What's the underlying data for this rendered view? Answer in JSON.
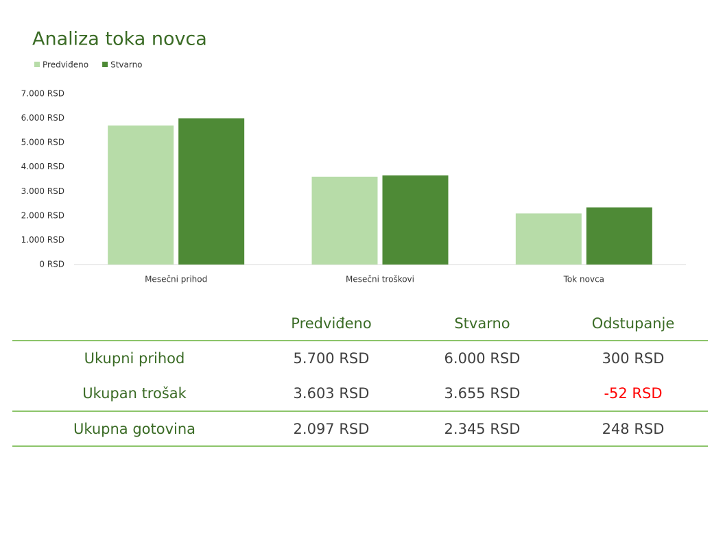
{
  "chart_data": {
    "type": "bar",
    "title": "Analiza toka novca",
    "categories": [
      "Mesečni prihod",
      "Mesečni troškovi",
      "Tok novca"
    ],
    "series": [
      {
        "name": "Predviđeno",
        "color": "#b7dca8",
        "values": [
          5700,
          3603,
          2097
        ]
      },
      {
        "name": "Stvarno",
        "color": "#4e8a36",
        "values": [
          6000,
          3655,
          2345
        ]
      }
    ],
    "ylim": [
      0,
      7000
    ],
    "yticks": [
      {
        "value": 0,
        "label": "0 RSD"
      },
      {
        "value": 1000,
        "label": "1.000 RSD"
      },
      {
        "value": 2000,
        "label": "2.000 RSD"
      },
      {
        "value": 3000,
        "label": "3.000 RSD"
      },
      {
        "value": 4000,
        "label": "4.000 RSD"
      },
      {
        "value": 5000,
        "label": "5.000 RSD"
      },
      {
        "value": 6000,
        "label": "6.000 RSD"
      },
      {
        "value": 7000,
        "label": "7.000 RSD"
      }
    ],
    "grid": false,
    "legend": "top-left"
  },
  "table": {
    "columns": [
      "Predviđeno",
      "Stvarno",
      "Odstupanje"
    ],
    "rows": [
      {
        "label": "Ukupni prihod",
        "cells": [
          "5.700 RSD",
          "6.000 RSD",
          "300 RSD"
        ]
      },
      {
        "label": "Ukupan trošak",
        "cells": [
          "3.603 RSD",
          "3.655 RSD",
          "-52 RSD"
        ]
      },
      {
        "label": "Ukupna gotovina",
        "cells": [
          "2.097 RSD",
          "2.345 RSD",
          "248 RSD"
        ]
      }
    ]
  }
}
